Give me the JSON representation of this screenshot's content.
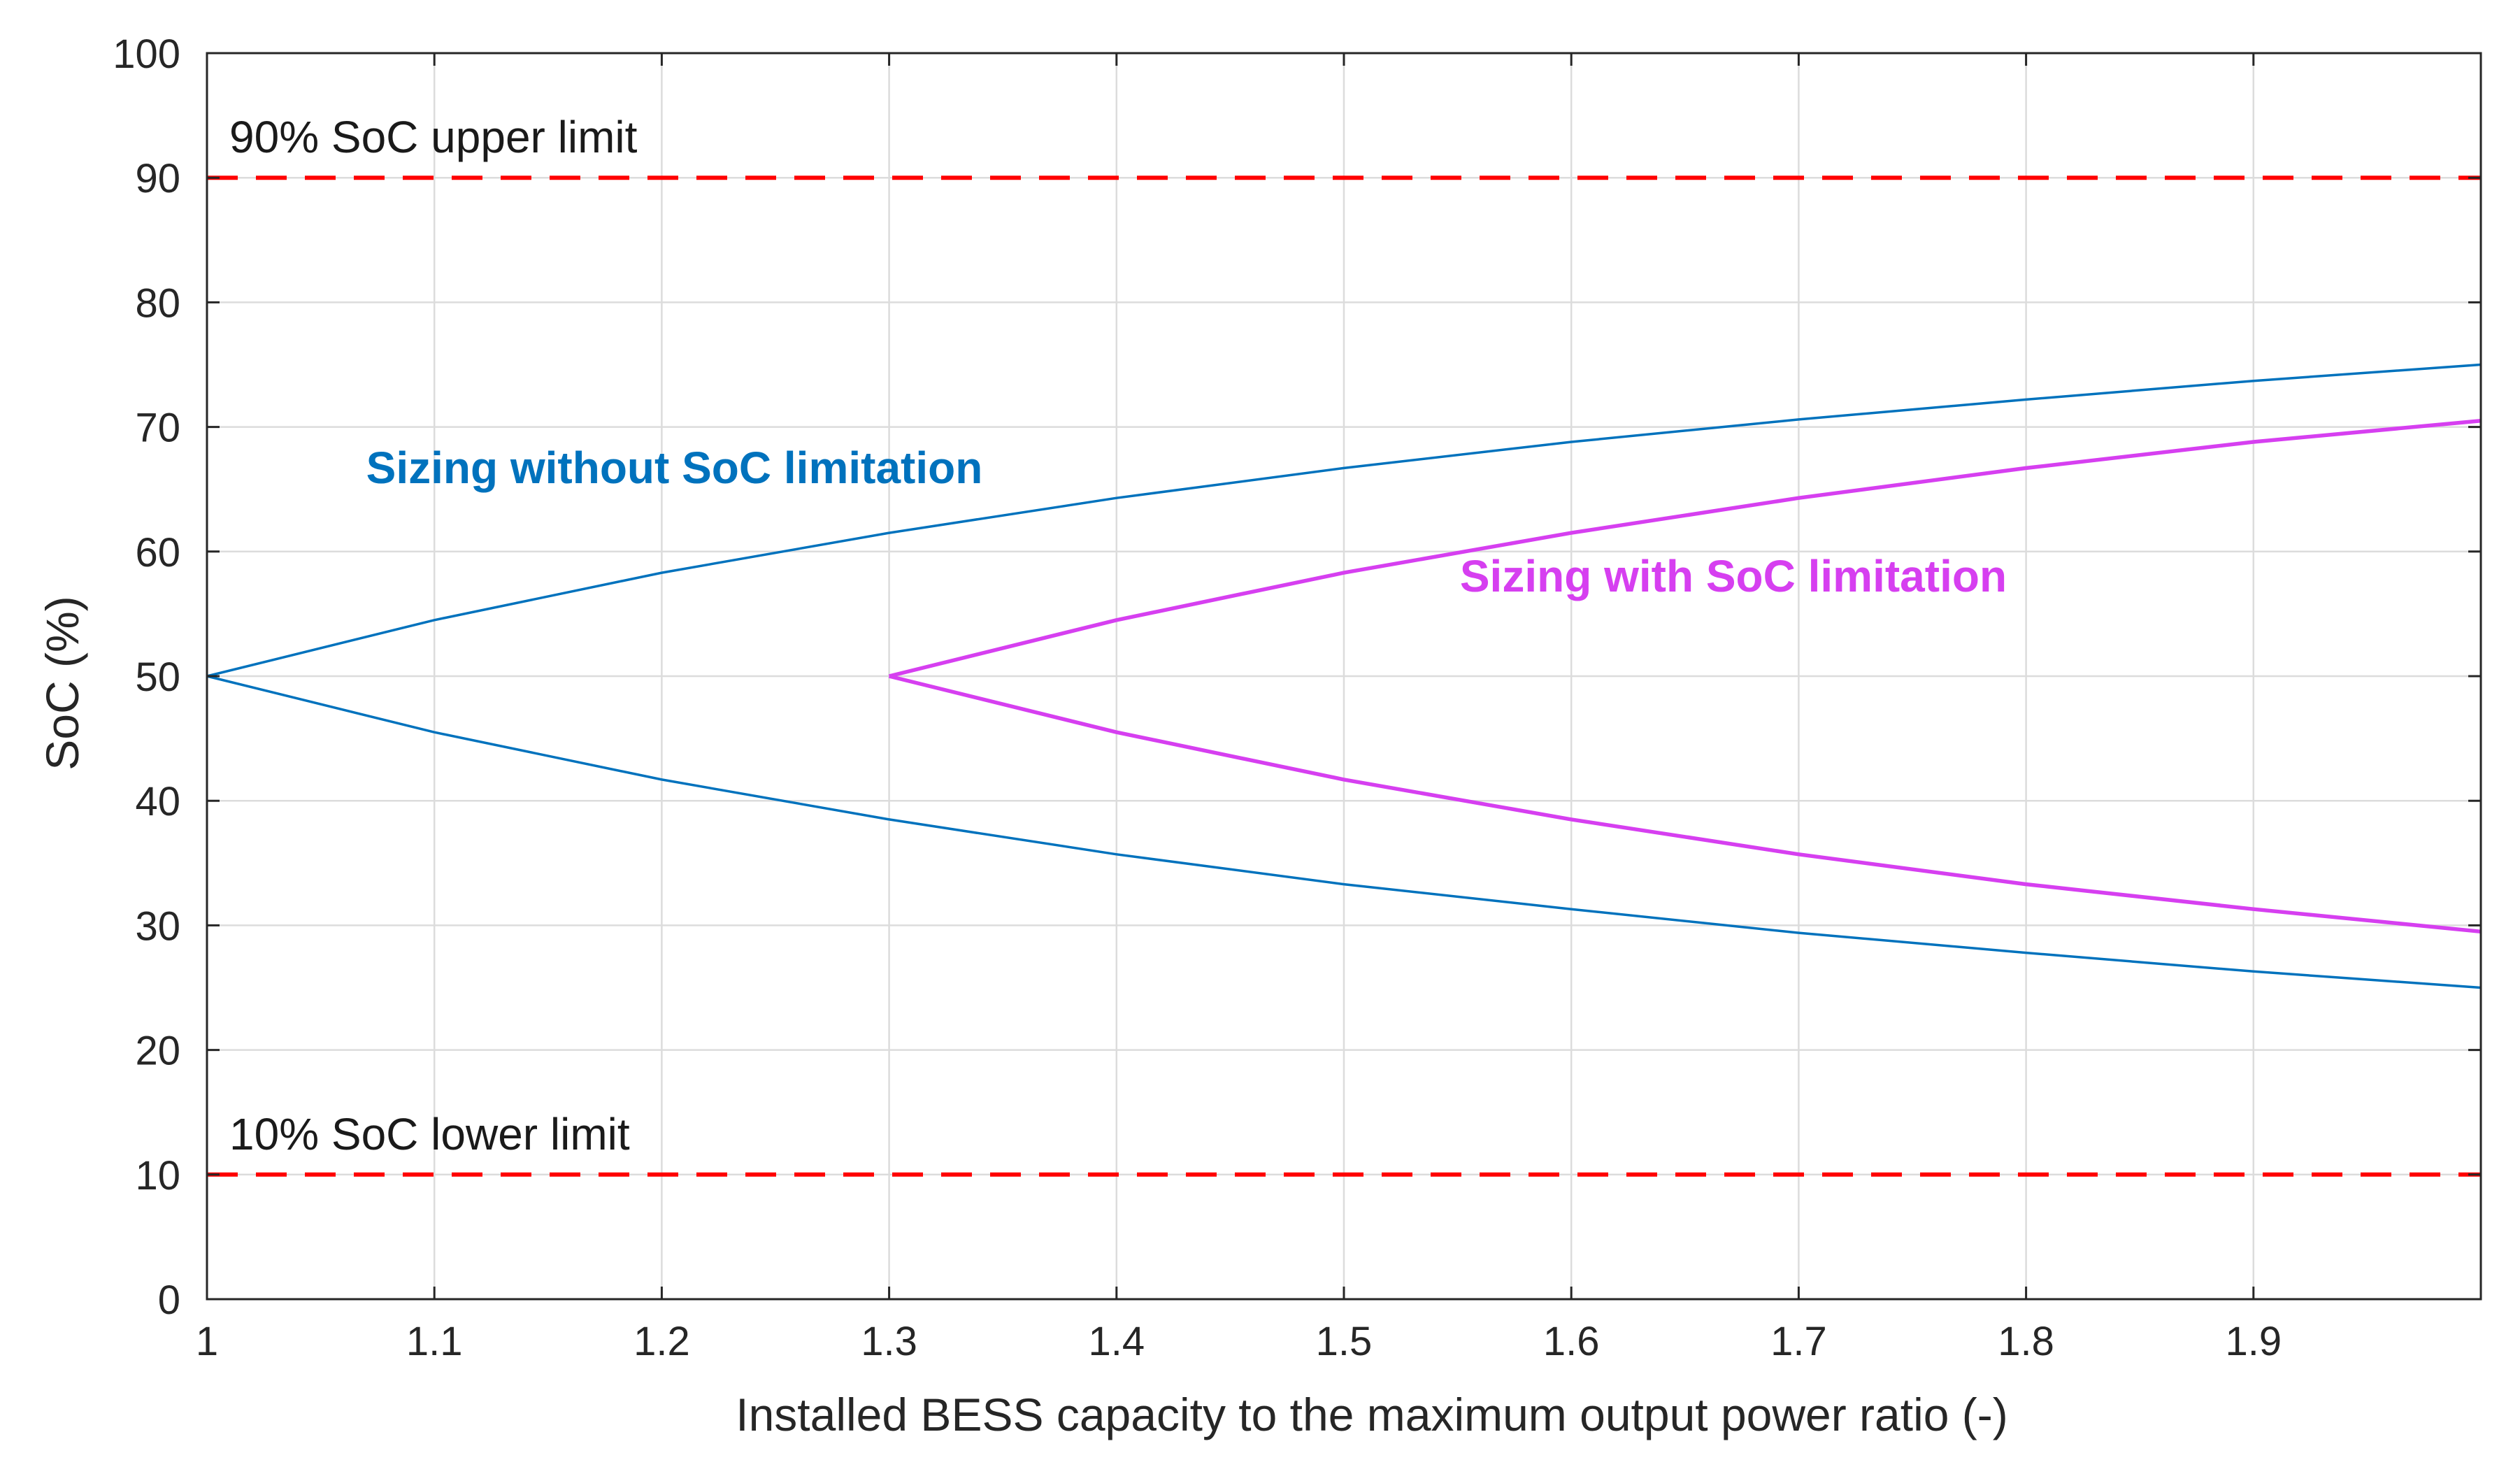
{
  "chart_data": {
    "type": "line",
    "xlabel": "Installed BESS capacity to the maximum output power ratio (-)",
    "ylabel": "SoC (%)",
    "xlim": [
      1,
      2
    ],
    "ylim": [
      0,
      100
    ],
    "x_ticks": [
      "1",
      "1.1",
      "1.2",
      "1.3",
      "1.4",
      "1.5",
      "1.6",
      "1.7",
      "1.8",
      "1.9"
    ],
    "x_tick_values": [
      1,
      1.1,
      1.2,
      1.3,
      1.4,
      1.5,
      1.6,
      1.7,
      1.8,
      1.9
    ],
    "y_ticks": [
      "0",
      "10",
      "20",
      "30",
      "40",
      "50",
      "60",
      "70",
      "80",
      "90",
      "100"
    ],
    "y_tick_values": [
      0,
      10,
      20,
      30,
      40,
      50,
      60,
      70,
      80,
      90,
      100
    ],
    "grid": true,
    "series": [
      {
        "name": "Sizing without SoC limitation",
        "color": "#0072BD",
        "upper": {
          "x": [
            1,
            1.1,
            1.2,
            1.3,
            1.4,
            1.5,
            1.6,
            1.7,
            1.8,
            1.9,
            2.0
          ],
          "y": [
            50,
            54.5,
            58.3,
            61.5,
            64.3,
            66.7,
            68.8,
            70.6,
            72.2,
            73.7,
            75.0
          ]
        },
        "lower": {
          "x": [
            1,
            1.1,
            1.2,
            1.3,
            1.4,
            1.5,
            1.6,
            1.7,
            1.8,
            1.9,
            2.0
          ],
          "y": [
            50,
            45.5,
            41.7,
            38.5,
            35.7,
            33.3,
            31.3,
            29.4,
            27.8,
            26.3,
            25.0
          ]
        }
      },
      {
        "name": "Sizing with SoC limitation",
        "color": "#D63FF0",
        "upper": {
          "x": [
            1.3,
            1.4,
            1.5,
            1.6,
            1.7,
            1.8,
            1.9,
            2.0
          ],
          "y": [
            50,
            54.5,
            58.3,
            61.5,
            64.3,
            66.7,
            68.8,
            70.5
          ]
        },
        "lower": {
          "x": [
            1.3,
            1.4,
            1.5,
            1.6,
            1.7,
            1.8,
            1.9,
            2.0
          ],
          "y": [
            50,
            45.5,
            41.7,
            38.5,
            35.7,
            33.3,
            31.3,
            29.5
          ]
        }
      }
    ],
    "reference_lines": [
      {
        "y": 90,
        "label": "90% SoC upper limit",
        "color": "#FF0000",
        "style": "dashed"
      },
      {
        "y": 10,
        "label": "10% SoC lower limit",
        "color": "#FF0000",
        "style": "dashed"
      }
    ]
  }
}
